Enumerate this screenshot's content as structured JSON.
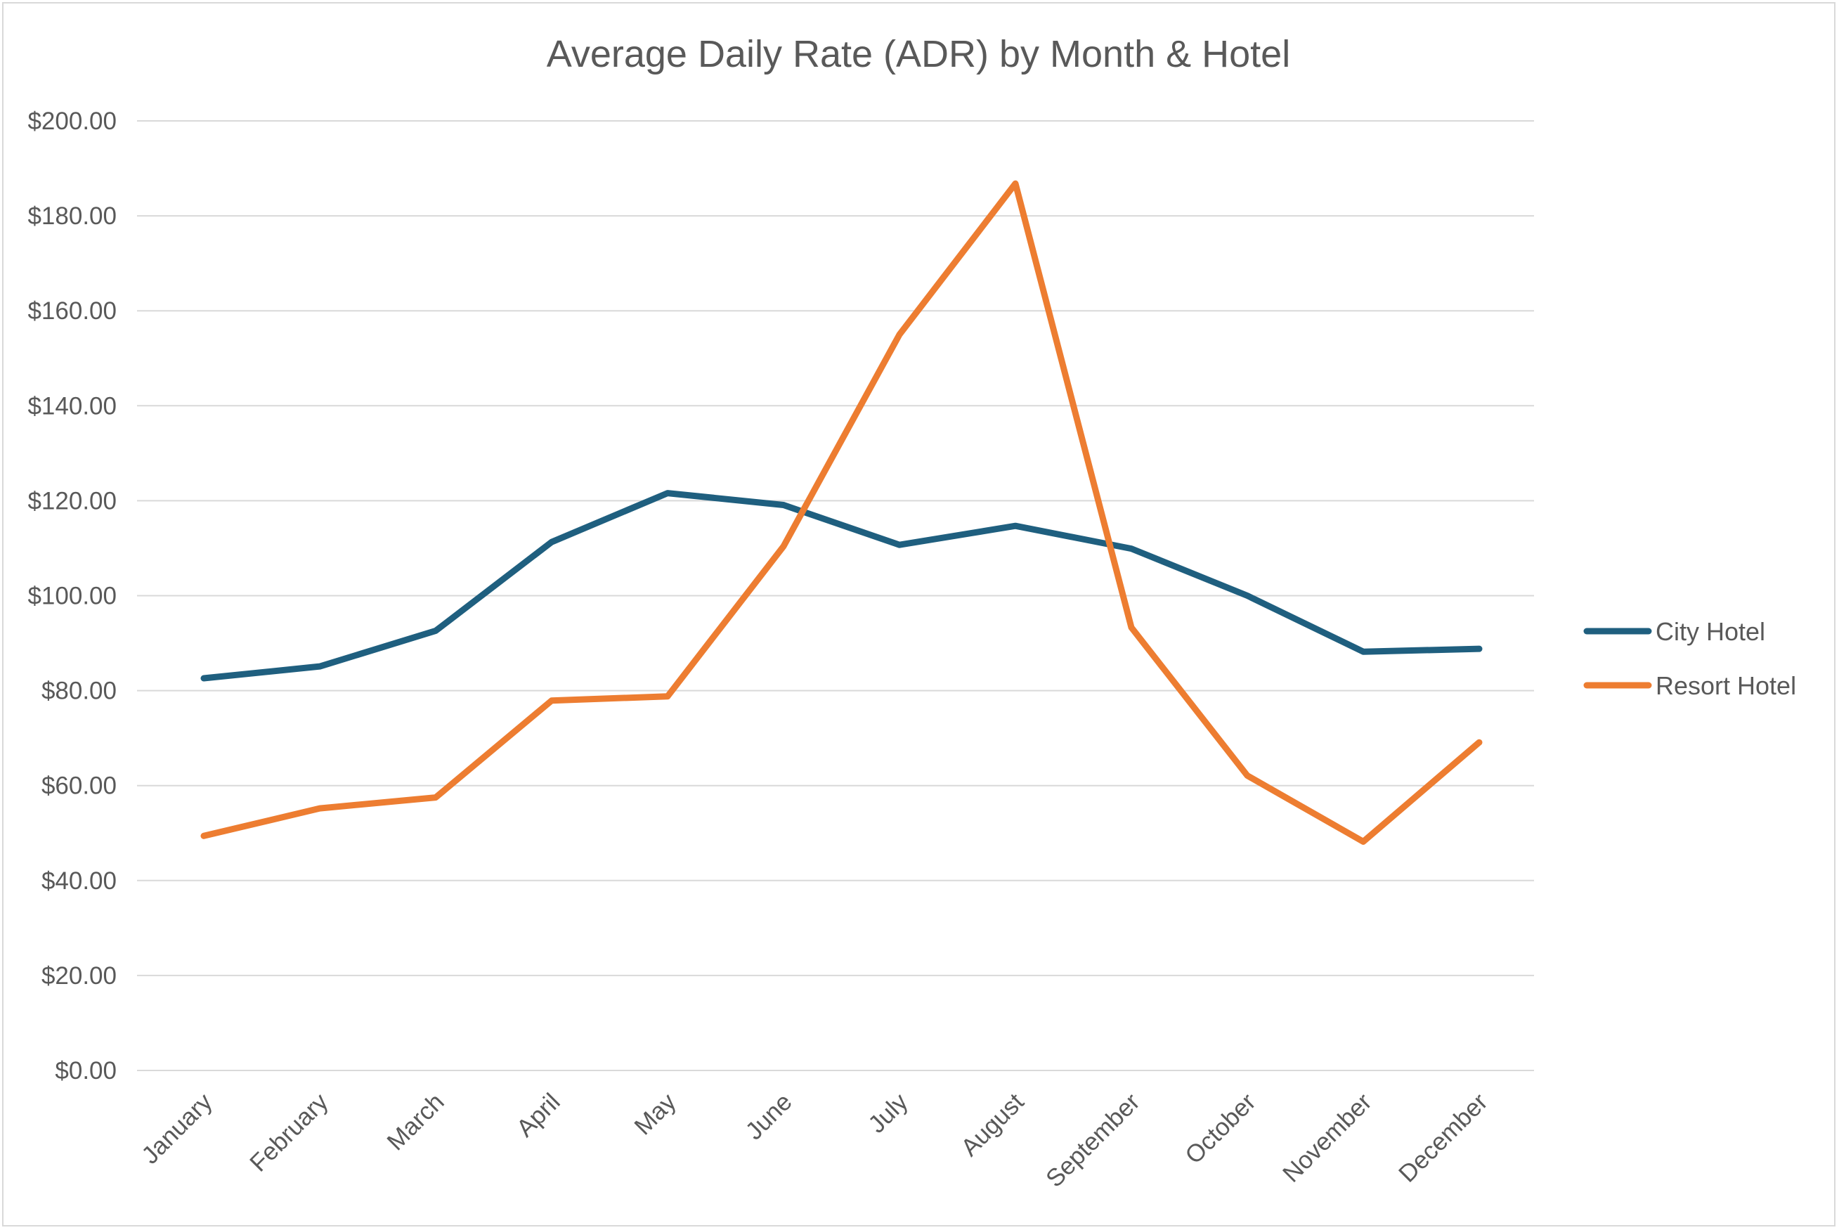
{
  "chart_data": {
    "type": "line",
    "title": "Average Daily Rate (ADR) by Month & Hotel",
    "xlabel": "",
    "ylabel": "",
    "categories": [
      "January",
      "February",
      "March",
      "April",
      "May",
      "June",
      "July",
      "August",
      "September",
      "October",
      "November",
      "December"
    ],
    "ylim": [
      0,
      200
    ],
    "yticks": [
      0,
      20,
      40,
      60,
      80,
      100,
      120,
      140,
      160,
      180,
      200
    ],
    "ytick_labels": [
      "$0.00",
      "$20.00",
      "$40.00",
      "$60.00",
      "$80.00",
      "$100.00",
      "$120.00",
      "$140.00",
      "$160.00",
      "$180.00",
      "$200.00"
    ],
    "grid": true,
    "legend_position": "right",
    "series": [
      {
        "name": "City Hotel",
        "color": "#1f5f7f",
        "values": [
          82.6,
          85.1,
          92.6,
          111.3,
          121.6,
          119.1,
          110.7,
          114.7,
          109.9,
          100.0,
          88.2,
          88.8
        ]
      },
      {
        "name": "Resort Hotel",
        "color": "#ed7d31",
        "values": [
          49.4,
          55.2,
          57.5,
          77.9,
          78.8,
          110.4,
          155.0,
          186.8,
          93.3,
          62.1,
          48.2,
          69.1
        ]
      }
    ]
  }
}
